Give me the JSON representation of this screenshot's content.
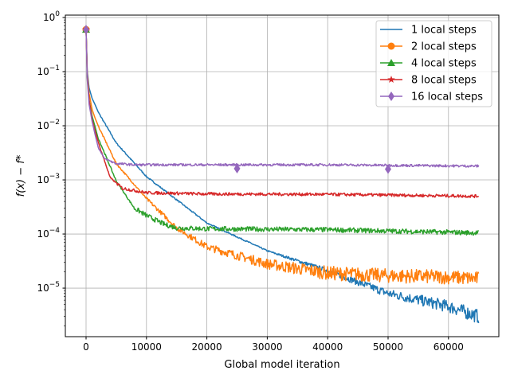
{
  "chart_data": {
    "type": "line",
    "title": "",
    "xlabel": "Global model iteration",
    "ylabel": "f(x) − f*",
    "xlim": [
      -3430,
      68340
    ],
    "ylim": [
      1.27e-06,
      1.107
    ],
    "yscale": "log",
    "grid": true,
    "legend_position": "top-right",
    "x_ticks": [
      0,
      10000,
      20000,
      30000,
      40000,
      50000,
      60000
    ],
    "x_tick_labels": [
      "0",
      "10000",
      "20000",
      "30000",
      "40000",
      "50000",
      "60000"
    ],
    "y_ticks": [
      1,
      0.1,
      0.01,
      0.001,
      0.0001,
      1e-05
    ],
    "y_tick_labels": [
      {
        "base": "10",
        "exp": "0"
      },
      {
        "base": "10",
        "exp": "−1"
      },
      {
        "base": "10",
        "exp": "−2"
      },
      {
        "base": "10",
        "exp": "−3"
      },
      {
        "base": "10",
        "exp": "−4"
      },
      {
        "base": "10",
        "exp": "−5"
      }
    ],
    "series": [
      {
        "name": "1 local steps",
        "color": "#1f77b4",
        "marker": "none",
        "marker_x": [],
        "x": [
          0,
          200,
          500,
          1000,
          2000,
          5000,
          10000,
          20000,
          30000,
          40000,
          50000,
          60000,
          65000
        ],
        "y": [
          0.6,
          0.1,
          0.05,
          0.032,
          0.018,
          0.0048,
          0.00115,
          0.00016,
          4.9e-05,
          2.1e-05,
          8e-06,
          4.6e-06,
          3e-06
        ]
      },
      {
        "name": "2 local steps",
        "color": "#ff7f0e",
        "marker": "circle",
        "marker_x": [
          0
        ],
        "x": [
          0,
          200,
          500,
          1000,
          2000,
          5000,
          10000,
          15000,
          20000,
          30000,
          40000,
          50000,
          60000,
          65000
        ],
        "y": [
          0.6,
          0.09,
          0.04,
          0.02,
          0.01,
          0.002,
          0.00045,
          0.00013,
          5.8e-05,
          2.8e-05,
          1.9e-05,
          1.7e-05,
          1.6e-05,
          1.5e-05
        ]
      },
      {
        "name": "4 local steps",
        "color": "#2ca02c",
        "marker": "triangle",
        "marker_x": [
          0
        ],
        "x": [
          0,
          200,
          500,
          1000,
          2000,
          5000,
          8000,
          10000,
          13000,
          15000,
          20000,
          40000,
          65000
        ],
        "y": [
          0.6,
          0.08,
          0.03,
          0.015,
          0.006,
          0.00095,
          0.0003,
          0.00022,
          0.00015,
          0.00013,
          0.000125,
          0.00012,
          0.000105
        ]
      },
      {
        "name": "8 local steps",
        "color": "#d62728",
        "marker": "star",
        "marker_x": [
          0
        ],
        "x": [
          0,
          200,
          500,
          1000,
          2000,
          4000,
          6000,
          10000,
          20000,
          40000,
          65000
        ],
        "y": [
          0.6,
          0.08,
          0.03,
          0.013,
          0.005,
          0.0011,
          0.0007,
          0.00058,
          0.00055,
          0.00054,
          0.0005
        ]
      },
      {
        "name": "16 local steps",
        "color": "#9467bd",
        "marker": "diamond",
        "marker_x": [
          0,
          25000,
          50000
        ],
        "x": [
          0,
          200,
          500,
          1000,
          2000,
          3000,
          5000,
          8000,
          20000,
          40000,
          65000
        ],
        "y": [
          0.6,
          0.07,
          0.025,
          0.012,
          0.004,
          0.0025,
          0.002,
          0.0019,
          0.0019,
          0.0019,
          0.0018
        ]
      }
    ]
  }
}
